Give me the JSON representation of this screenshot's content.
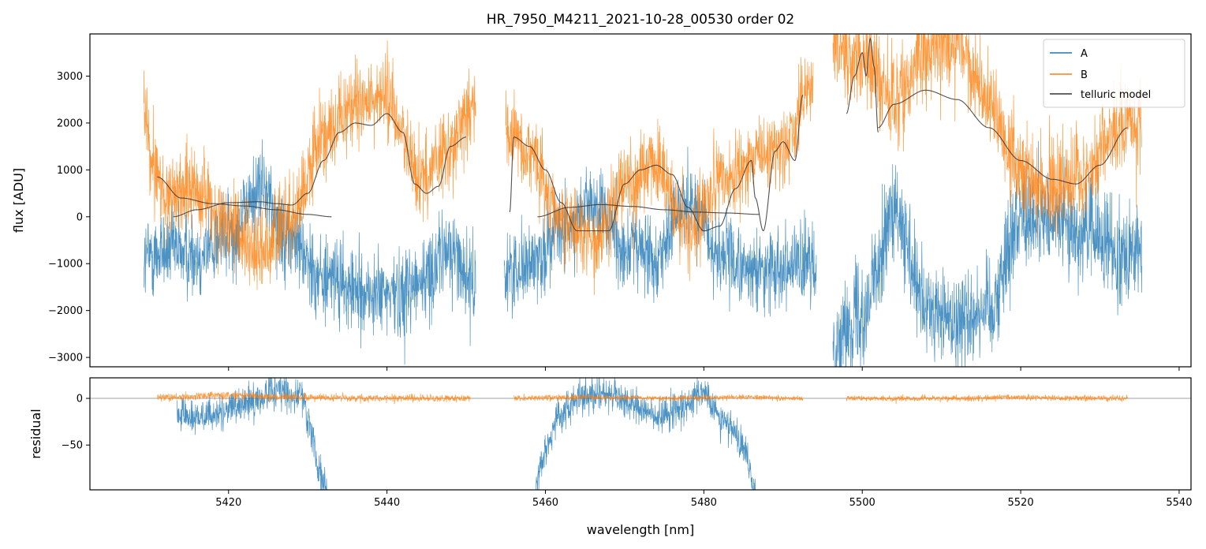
{
  "title": "HR_7950_M4211_2021-10-28_00530  order 02",
  "legend": {
    "placement": "top-right",
    "items": [
      {
        "label": "A",
        "color": "#1f77b4"
      },
      {
        "label": "B",
        "color": "#ff7f0e"
      },
      {
        "label": "telluric model",
        "color": "#333333"
      }
    ]
  },
  "x_axis": {
    "label": "wavelength [nm]",
    "range": [
      5402.5,
      5541.5
    ],
    "ticks": [
      5420,
      5440,
      5460,
      5480,
      5500,
      5520,
      5540
    ],
    "tick_labels": [
      "5420",
      "5440",
      "5460",
      "5480",
      "5500",
      "5520",
      "5540"
    ]
  },
  "chart_data": [
    {
      "type": "line",
      "panel": "top",
      "ylabel": "flux [ADU]",
      "ylim": [
        -3200,
        3900
      ],
      "yticks": [
        -3000,
        -2000,
        -1000,
        0,
        1000,
        2000,
        3000
      ],
      "ytick_labels": [
        "−3000",
        "−2000",
        "−1000",
        "0",
        "1000",
        "2000",
        "3000"
      ],
      "grid": false,
      "series": [
        {
          "name": "A",
          "color": "#1f77b4",
          "style": "noisy",
          "segments": [
            {
              "x": [
                5409.3,
                5412,
                5416,
                5420,
                5424,
                5428,
                5432,
                5436,
                5440,
                5444,
                5448,
                5451.2
              ],
              "y": [
                -900,
                -700,
                -800,
                -400,
                600,
                -500,
                -1300,
                -1600,
                -1700,
                -1400,
                -700,
                -1500
              ],
              "noise": 450
            },
            {
              "x": [
                5454.8,
                5458,
                5462,
                5466,
                5470,
                5474,
                5478,
                5482,
                5486,
                5490,
                5494.2
              ],
              "y": [
                -1200,
                -1000,
                -300,
                200,
                -600,
                -800,
                400,
                -800,
                -1200,
                -1000,
                -1100
              ],
              "noise": 420
            },
            {
              "x": [
                5496.3,
                5500,
                5504,
                5508,
                5512,
                5516,
                5520,
                5524,
                5528,
                5532,
                5535.3
              ],
              "y": [
                -2700,
                -2000,
                0,
                -2000,
                -2200,
                -1900,
                0,
                -100,
                -300,
                -700,
                -800
              ],
              "noise": 520
            }
          ]
        },
        {
          "name": "B",
          "color": "#ff7f0e",
          "style": "noisy",
          "segments": [
            {
              "x": [
                5409.3,
                5410,
                5412,
                5416,
                5420,
                5424,
                5428,
                5432,
                5436,
                5440,
                5444,
                5448,
                5451.2
              ],
              "y": [
                2500,
                1300,
                500,
                600,
                -300,
                -700,
                0,
                1700,
                2400,
                2500,
                800,
                1500,
                2500
              ],
              "noise": 430
            },
            {
              "x": [
                5455.0,
                5458,
                5462,
                5466,
                5470,
                5474,
                5478,
                5482,
                5486,
                5490,
                5493.8
              ],
              "y": [
                1900,
                1400,
                0,
                -500,
                700,
                1100,
                -300,
                700,
                1200,
                1500,
                2800
              ],
              "noise": 420
            },
            {
              "x": [
                5496.3,
                5500,
                5504,
                5508,
                5512,
                5516,
                5520,
                5524,
                5528,
                5532,
                5535.3
              ],
              "y": [
                3600,
                3300,
                2500,
                3600,
                3600,
                2500,
                1000,
                600,
                900,
                1800,
                2000
              ],
              "noise": 500
            }
          ]
        },
        {
          "name": "telluric model",
          "color": "#333333",
          "style": "smooth",
          "segments": [
            {
              "x": [
                5411,
                5414,
                5418,
                5422,
                5426,
                5430,
                5433
              ],
              "y": [
                850,
                400,
                280,
                230,
                150,
                50,
                0
              ]
            },
            {
              "x": [
                5413,
                5416,
                5420,
                5424,
                5426,
                5428,
                5430,
                5432,
                5434,
                5436,
                5438,
                5440,
                5442,
                5443.5,
                5445,
                5446.5,
                5448,
                5450
              ],
              "y": [
                0,
                150,
                300,
                320,
                280,
                250,
                500,
                1200,
                1800,
                2000,
                1950,
                2200,
                1800,
                700,
                500,
                650,
                1500,
                1700
              ]
            },
            {
              "x": [
                5455.5,
                5456,
                5458,
                5460,
                5462,
                5464,
                5466,
                5468,
                5470,
                5472,
                5474,
                5476,
                5478,
                5480,
                5482,
                5484,
                5486,
                5486.5,
                5487.5,
                5489,
                5490,
                5491.5,
                5492.5
              ],
              "y": [
                100,
                1700,
                1500,
                1000,
                300,
                -300,
                -300,
                -300,
                700,
                1000,
                1100,
                900,
                200,
                -300,
                -200,
                600,
                1200,
                400,
                -300,
                1400,
                1600,
                1200,
                2600
              ]
            },
            {
              "x": [
                5459,
                5463,
                5467,
                5471,
                5475,
                5479,
                5483,
                5487
              ],
              "y": [
                0,
                200,
                260,
                220,
                150,
                100,
                80,
                50
              ]
            },
            {
              "x": [
                5498,
                5499,
                5500,
                5500.5,
                5501,
                5501.5,
                5502
              ],
              "y": [
                2200,
                3000,
                3500,
                3000,
                3800,
                3200,
                1800
              ]
            },
            {
              "x": [
                5502,
                5504,
                5508,
                5512,
                5516,
                5520,
                5524,
                5527,
                5530,
                5533.5
              ],
              "y": [
                1900,
                2400,
                2700,
                2500,
                1900,
                1200,
                800,
                700,
                1100,
                1900
              ]
            }
          ]
        }
      ]
    },
    {
      "type": "line",
      "panel": "bottom",
      "ylabel": "residual",
      "ylim": [
        -98,
        22
      ],
      "yticks": [
        -50,
        0
      ],
      "ytick_labels": [
        "−50",
        "0"
      ],
      "reference_line_y": 0,
      "grid": false,
      "series": [
        {
          "name": "A",
          "color": "#1f77b4",
          "style": "noisy",
          "segments": [
            {
              "x": [
                5413.5,
                5415,
                5418,
                5422,
                5426,
                5429,
                5430.5,
                5431.5,
                5432.5
              ],
              "y": [
                -15,
                -20,
                -18,
                -5,
                8,
                5,
                -40,
                -80,
                -98
              ],
              "noise": 9
            },
            {
              "x": [
                5458.8,
                5460,
                5462,
                5465,
                5468,
                5471,
                5474,
                5477,
                5480,
                5483,
                5485,
                5486.5
              ],
              "y": [
                -95,
                -50,
                -15,
                3,
                5,
                -5,
                -20,
                -10,
                5,
                -30,
                -55,
                -98
              ],
              "noise": 9
            }
          ]
        },
        {
          "name": "B",
          "color": "#ff7f0e",
          "style": "noisy",
          "segments": [
            {
              "x": [
                5411,
                5420,
                5430,
                5440,
                5450.5
              ],
              "y": [
                1,
                3,
                1,
                0,
                0
              ],
              "noise": 2
            },
            {
              "x": [
                5456,
                5465,
                5475,
                5485,
                5492.5
              ],
              "y": [
                0,
                1,
                0,
                1,
                0
              ],
              "noise": 1.5
            },
            {
              "x": [
                5498,
                5510,
                5520,
                5533.5
              ],
              "y": [
                0,
                0,
                1,
                0
              ],
              "noise": 1.5
            }
          ]
        }
      ]
    }
  ]
}
